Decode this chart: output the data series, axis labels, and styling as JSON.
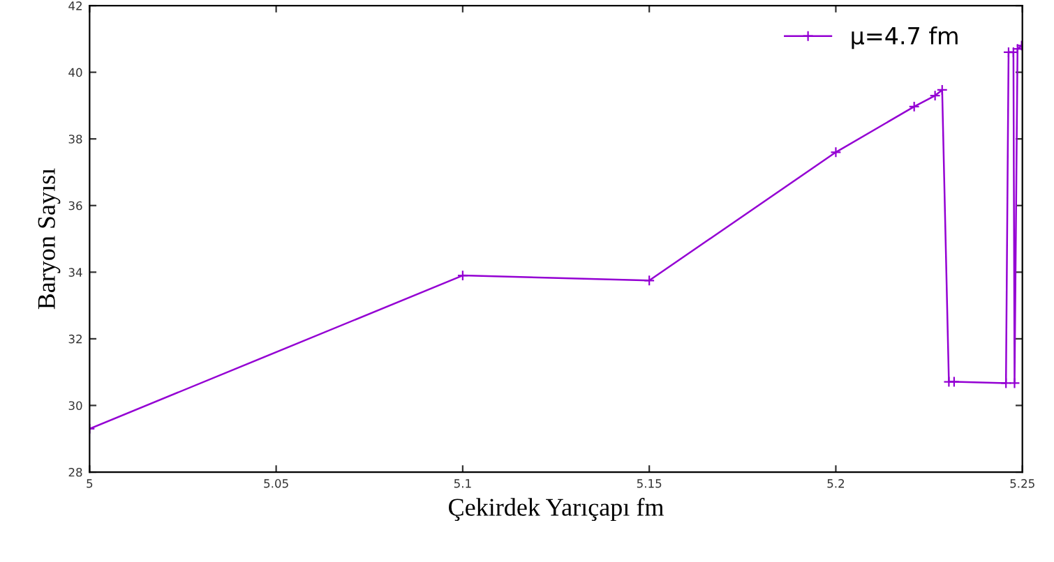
{
  "chart_data": {
    "type": "line",
    "xlabel": "Çekirdek Yarıçapı fm",
    "ylabel": "Baryon Sayısı",
    "xlim": [
      5,
      5.25
    ],
    "xticks": [
      5,
      5.05,
      5.1,
      5.15,
      5.2,
      5.25
    ],
    "ylim": [
      28,
      42
    ],
    "yticks": [
      28,
      30,
      32,
      34,
      36,
      38,
      40,
      42
    ],
    "grid": false,
    "legend": "top right",
    "marker": "cross",
    "line_style": "solid",
    "series": [
      {
        "name": "μ=4.7 fm",
        "color": "#9400d3",
        "x": [
          5,
          5.1,
          5.15,
          5.2,
          5.221,
          5.2266,
          5.2285,
          5.2303,
          5.2317,
          5.2456,
          5.2463,
          5.2476,
          5.2479,
          5.2487,
          5.2498
        ],
        "values": [
          29.3,
          33.9,
          33.75,
          37.6,
          38.97,
          39.3,
          39.47,
          30.71,
          30.71,
          30.67,
          40.6,
          40.6,
          30.67,
          40.7,
          40.8
        ]
      }
    ]
  }
}
